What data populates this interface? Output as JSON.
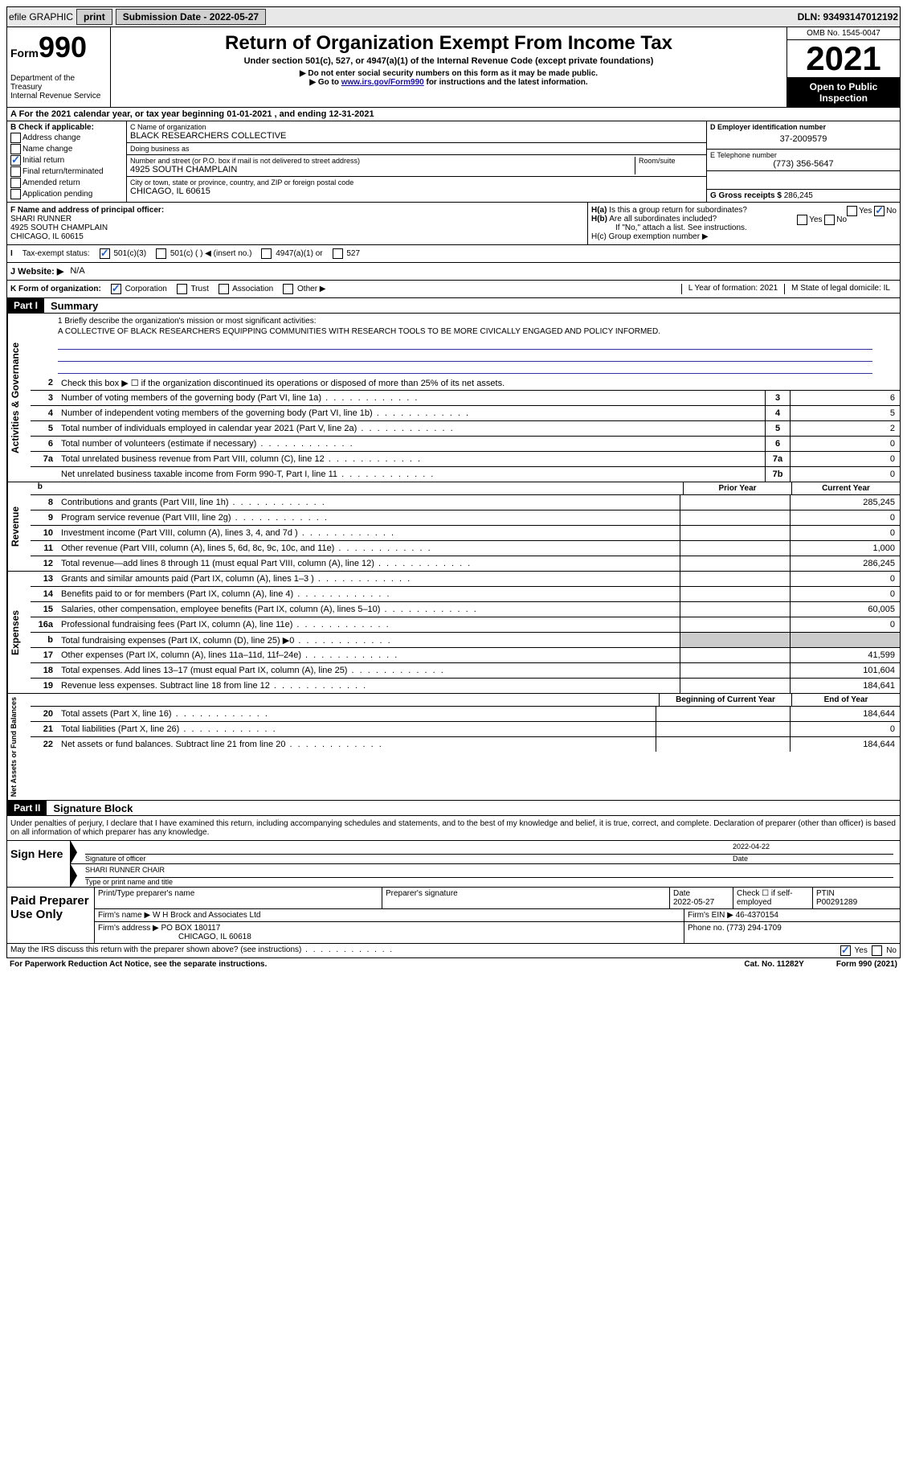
{
  "topbar": {
    "efile": "efile GRAPHIC",
    "print": "print",
    "submission": "Submission Date - 2022-05-27",
    "dln": "DLN: 93493147012192"
  },
  "header": {
    "form": "Form",
    "formnum": "990",
    "dept": "Department of the Treasury",
    "irs": "Internal Revenue Service",
    "title": "Return of Organization Exempt From Income Tax",
    "sub1": "Under section 501(c), 527, or 4947(a)(1) of the Internal Revenue Code (except private foundations)",
    "sub2": "▶ Do not enter social security numbers on this form as it may be made public.",
    "sub3a": "▶ Go to ",
    "sub3link": "www.irs.gov/Form990",
    "sub3b": " for instructions and the latest information.",
    "omb": "OMB No. 1545-0047",
    "year": "2021",
    "open1": "Open to Public",
    "open2": "Inspection"
  },
  "rowA": {
    "label": "A For the 2021 calendar year, or tax year beginning ",
    "begin": "01-01-2021",
    "mid": " , and ending ",
    "end": "12-31-2021"
  },
  "colB": {
    "label": "B Check if applicable:",
    "opts": [
      "Address change",
      "Name change",
      "Initial return",
      "Final return/terminated",
      "Amended return",
      "Application pending"
    ]
  },
  "orgC": {
    "namelabel": "C Name of organization",
    "name": "BLACK RESEARCHERS COLLECTIVE",
    "dba": "Doing business as",
    "addrlabel": "Number and street (or P.O. box if mail is not delivered to street address)",
    "room": "Room/suite",
    "addr": "4925 SOUTH CHAMPLAIN",
    "citylabel": "City or town, state or province, country, and ZIP or foreign postal code",
    "city": "CHICAGO, IL  60615"
  },
  "colD": {
    "label": "D Employer identification number",
    "val": "37-2009579",
    "elabel": "E Telephone number",
    "eval": "(773) 356-5647",
    "glabel": "G Gross receipts $",
    "gval": "286,245"
  },
  "rowF": {
    "label": "F Name and address of principal officer:",
    "name": "SHARI RUNNER",
    "addr": "4925 SOUTH CHAMPLAIN",
    "city": "CHICAGO, IL  60615",
    "ha": "H(a)  Is this a group return for subordinates?",
    "hb": "H(b)  Are all subordinates included?",
    "hbnote": "If \"No,\" attach a list. See instructions.",
    "hc": "H(c)  Group exemption number ▶",
    "yes": "Yes",
    "no": "No"
  },
  "taxI": {
    "label": "Tax-exempt status:",
    "o1": "501(c)(3)",
    "o2": "501(c) (  ) ◀ (insert no.)",
    "o3": "4947(a)(1) or",
    "o4": "527"
  },
  "rowJ": {
    "label": "J   Website: ▶",
    "val": "N/A"
  },
  "rowK": {
    "label": "K Form of organization:",
    "o1": "Corporation",
    "o2": "Trust",
    "o3": "Association",
    "o4": "Other ▶",
    "l": "L Year of formation: 2021",
    "m": "M State of legal domicile: IL"
  },
  "part1": {
    "tag": "Part I",
    "title": "Summary"
  },
  "mission": {
    "label": "1   Briefly describe the organization's mission or most significant activities:",
    "text": "A COLLECTIVE OF BLACK RESEARCHERS EQUIPPING COMMUNITIES WITH RESEARCH TOOLS TO BE MORE CIVICALLY ENGAGED AND POLICY INFORMED."
  },
  "line2": "Check this box ▶ ☐ if the organization discontinued its operations or disposed of more than 25% of its net assets.",
  "vlabels": {
    "ag": "Activities & Governance",
    "rev": "Revenue",
    "exp": "Expenses",
    "na": "Net Assets or Fund Balances"
  },
  "lines_ag": [
    {
      "n": "3",
      "d": "Number of voting members of the governing body (Part VI, line 1a)",
      "box": "3",
      "v": "6"
    },
    {
      "n": "4",
      "d": "Number of independent voting members of the governing body (Part VI, line 1b)",
      "box": "4",
      "v": "5"
    },
    {
      "n": "5",
      "d": "Total number of individuals employed in calendar year 2021 (Part V, line 2a)",
      "box": "5",
      "v": "2"
    },
    {
      "n": "6",
      "d": "Total number of volunteers (estimate if necessary)",
      "box": "6",
      "v": "0"
    },
    {
      "n": "7a",
      "d": "Total unrelated business revenue from Part VIII, column (C), line 12",
      "box": "7a",
      "v": "0"
    },
    {
      "n": "",
      "d": "Net unrelated business taxable income from Form 990-T, Part I, line 11",
      "box": "7b",
      "v": "0"
    }
  ],
  "colhdr": {
    "prior": "Prior Year",
    "curr": "Current Year"
  },
  "lines_rev": [
    {
      "n": "8",
      "d": "Contributions and grants (Part VIII, line 1h)",
      "p": "",
      "c": "285,245"
    },
    {
      "n": "9",
      "d": "Program service revenue (Part VIII, line 2g)",
      "p": "",
      "c": "0"
    },
    {
      "n": "10",
      "d": "Investment income (Part VIII, column (A), lines 3, 4, and 7d )",
      "p": "",
      "c": "0"
    },
    {
      "n": "11",
      "d": "Other revenue (Part VIII, column (A), lines 5, 6d, 8c, 9c, 10c, and 11e)",
      "p": "",
      "c": "1,000"
    },
    {
      "n": "12",
      "d": "Total revenue—add lines 8 through 11 (must equal Part VIII, column (A), line 12)",
      "p": "",
      "c": "286,245"
    }
  ],
  "lines_exp": [
    {
      "n": "13",
      "d": "Grants and similar amounts paid (Part IX, column (A), lines 1–3 )",
      "p": "",
      "c": "0"
    },
    {
      "n": "14",
      "d": "Benefits paid to or for members (Part IX, column (A), line 4)",
      "p": "",
      "c": "0"
    },
    {
      "n": "15",
      "d": "Salaries, other compensation, employee benefits (Part IX, column (A), lines 5–10)",
      "p": "",
      "c": "60,005"
    },
    {
      "n": "16a",
      "d": "Professional fundraising fees (Part IX, column (A), line 11e)",
      "p": "",
      "c": "0"
    },
    {
      "n": "b",
      "d": "Total fundraising expenses (Part IX, column (D), line 25) ▶0",
      "p": "grey",
      "c": "grey"
    },
    {
      "n": "17",
      "d": "Other expenses (Part IX, column (A), lines 11a–11d, 11f–24e)",
      "p": "",
      "c": "41,599"
    },
    {
      "n": "18",
      "d": "Total expenses. Add lines 13–17 (must equal Part IX, column (A), line 25)",
      "p": "",
      "c": "101,604"
    },
    {
      "n": "19",
      "d": "Revenue less expenses. Subtract line 18 from line 12",
      "p": "",
      "c": "184,641"
    }
  ],
  "colhdr2": {
    "prior": "Beginning of Current Year",
    "curr": "End of Year"
  },
  "lines_na": [
    {
      "n": "20",
      "d": "Total assets (Part X, line 16)",
      "p": "",
      "c": "184,644"
    },
    {
      "n": "21",
      "d": "Total liabilities (Part X, line 26)",
      "p": "",
      "c": "0"
    },
    {
      "n": "22",
      "d": "Net assets or fund balances. Subtract line 21 from line 20",
      "p": "",
      "c": "184,644"
    }
  ],
  "part2": {
    "tag": "Part II",
    "title": "Signature Block"
  },
  "sig": {
    "intro": "Under penalties of perjury, I declare that I have examined this return, including accompanying schedules and statements, and to the best of my knowledge and belief, it is true, correct, and complete. Declaration of preparer (other than officer) is based on all information of which preparer has any knowledge.",
    "side": "Sign Here",
    "siglabel": "Signature of officer",
    "date": "2022-04-22",
    "datelabel": "Date",
    "name": "SHARI RUNNER CHAIR",
    "namelabel": "Type or print name and title"
  },
  "paid": {
    "side": "Paid Preparer Use Only",
    "h1": "Print/Type preparer's name",
    "h2": "Preparer's signature",
    "h3": "Date",
    "h3v": "2022-05-27",
    "h4": "Check ☐ if self-employed",
    "h5": "PTIN",
    "h5v": "P00291289",
    "firm": "Firm's name    ▶",
    "firmv": "W H Brock and Associates Ltd",
    "ein": "Firm's EIN ▶",
    "einv": "46-4370154",
    "addr": "Firm's address ▶",
    "addrv": "PO BOX 180117",
    "addrv2": "CHICAGO, IL  60618",
    "phone": "Phone no.",
    "phonev": "(773) 294-1709"
  },
  "footer": {
    "q": "May the IRS discuss this return with the preparer shown above? (see instructions)",
    "yes": "Yes",
    "no": "No"
  },
  "final": {
    "l": "For Paperwork Reduction Act Notice, see the separate instructions.",
    "m": "Cat. No. 11282Y",
    "r": "Form 990 (2021)"
  }
}
